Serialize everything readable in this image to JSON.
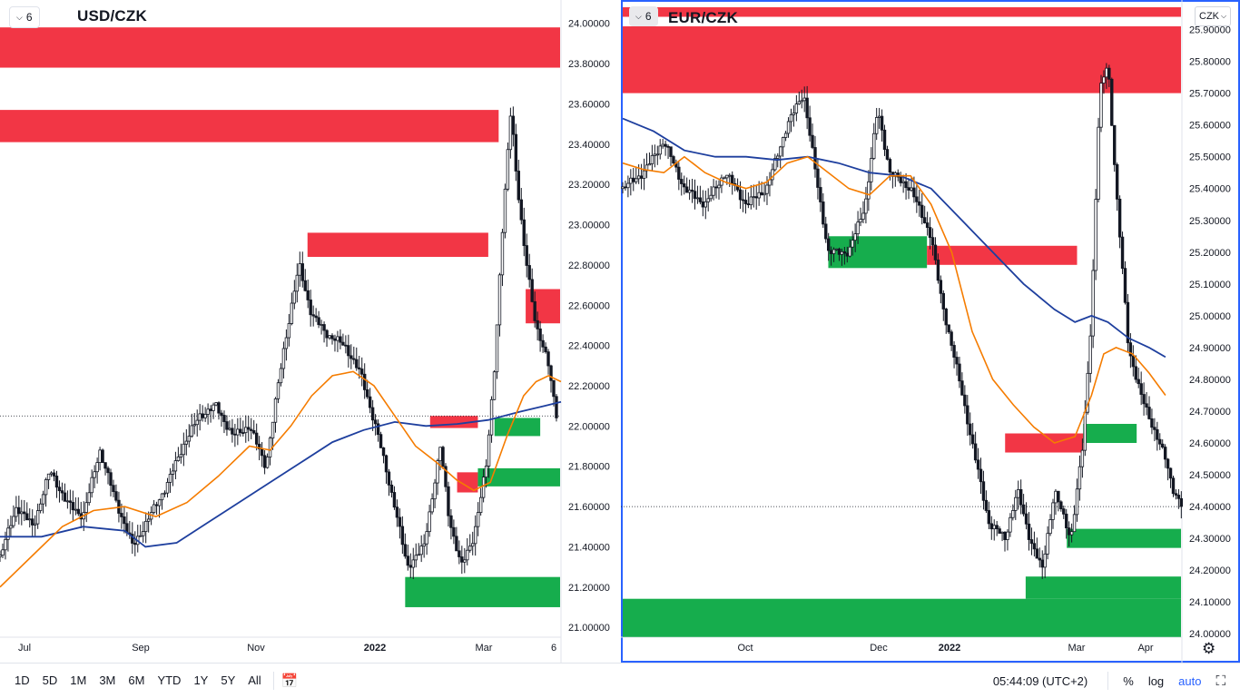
{
  "toolbar": {
    "timeframes": [
      "1D",
      "5D",
      "1M",
      "3M",
      "6M",
      "YTD",
      "1Y",
      "5Y",
      "All"
    ],
    "clock": "05:44:09 (UTC+2)",
    "percent_label": "%",
    "log_label": "log",
    "auto_label": "auto",
    "compare_icon": "calendar-range-icon",
    "fullscreen_icon": "fullscreen-icon"
  },
  "colors": {
    "supply_zone": "#f23645",
    "demand_zone": "#16ad4d",
    "ma_fast": "#f57c00",
    "ma_slow": "#1e3f9e",
    "candle": "#131722",
    "accent": "#2962ff"
  },
  "chart_data": [
    {
      "type": "candlestick",
      "title": "USD/CZK",
      "interval": "6",
      "ylim": [
        20.96,
        24.08
      ],
      "y_ticks": [
        "24.00000",
        "23.80000",
        "23.60000",
        "23.40000",
        "23.20000",
        "23.00000",
        "22.80000",
        "22.60000",
        "22.40000",
        "22.20000",
        "22.00000",
        "21.80000",
        "21.60000",
        "21.40000",
        "21.20000",
        "21.00000"
      ],
      "x_ticks": [
        "Jul",
        "Sep",
        "Nov",
        "2022",
        "Mar",
        "6"
      ],
      "last_price": 22.05,
      "close_series": [
        {
          "t": 0,
          "v": 21.35
        },
        {
          "t": 8,
          "v": 21.6
        },
        {
          "t": 16,
          "v": 21.5
        },
        {
          "t": 24,
          "v": 21.78
        },
        {
          "t": 32,
          "v": 21.62
        },
        {
          "t": 40,
          "v": 21.55
        },
        {
          "t": 48,
          "v": 21.88
        },
        {
          "t": 56,
          "v": 21.62
        },
        {
          "t": 64,
          "v": 21.4
        },
        {
          "t": 72,
          "v": 21.55
        },
        {
          "t": 80,
          "v": 21.7
        },
        {
          "t": 88,
          "v": 21.9
        },
        {
          "t": 96,
          "v": 22.05
        },
        {
          "t": 104,
          "v": 22.1
        },
        {
          "t": 112,
          "v": 21.95
        },
        {
          "t": 120,
          "v": 22.0
        },
        {
          "t": 128,
          "v": 21.8
        },
        {
          "t": 136,
          "v": 22.35
        },
        {
          "t": 144,
          "v": 22.8
        },
        {
          "t": 150,
          "v": 22.55
        },
        {
          "t": 158,
          "v": 22.45
        },
        {
          "t": 166,
          "v": 22.4
        },
        {
          "t": 174,
          "v": 22.25
        },
        {
          "t": 182,
          "v": 21.95
        },
        {
          "t": 190,
          "v": 21.6
        },
        {
          "t": 196,
          "v": 21.3
        },
        {
          "t": 204,
          "v": 21.4
        },
        {
          "t": 212,
          "v": 21.9
        },
        {
          "t": 216,
          "v": 21.55
        },
        {
          "t": 222,
          "v": 21.3
        },
        {
          "t": 228,
          "v": 21.45
        },
        {
          "t": 234,
          "v": 21.8
        },
        {
          "t": 238,
          "v": 22.3
        },
        {
          "t": 242,
          "v": 23.0
        },
        {
          "t": 246,
          "v": 23.6
        },
        {
          "t": 248,
          "v": 23.3
        },
        {
          "t": 252,
          "v": 22.9
        },
        {
          "t": 258,
          "v": 22.5
        },
        {
          "t": 264,
          "v": 22.3
        },
        {
          "t": 268,
          "v": 22.05
        }
      ],
      "ma_fast": [
        {
          "t": 0,
          "v": 21.2
        },
        {
          "t": 15,
          "v": 21.35
        },
        {
          "t": 30,
          "v": 21.5
        },
        {
          "t": 45,
          "v": 21.58
        },
        {
          "t": 60,
          "v": 21.6
        },
        {
          "t": 75,
          "v": 21.55
        },
        {
          "t": 90,
          "v": 21.62
        },
        {
          "t": 105,
          "v": 21.75
        },
        {
          "t": 120,
          "v": 21.9
        },
        {
          "t": 130,
          "v": 21.88
        },
        {
          "t": 140,
          "v": 22.0
        },
        {
          "t": 150,
          "v": 22.15
        },
        {
          "t": 160,
          "v": 22.25
        },
        {
          "t": 170,
          "v": 22.27
        },
        {
          "t": 180,
          "v": 22.2
        },
        {
          "t": 190,
          "v": 22.05
        },
        {
          "t": 200,
          "v": 21.9
        },
        {
          "t": 210,
          "v": 21.82
        },
        {
          "t": 220,
          "v": 21.73
        },
        {
          "t": 228,
          "v": 21.68
        },
        {
          "t": 236,
          "v": 21.72
        },
        {
          "t": 244,
          "v": 21.95
        },
        {
          "t": 252,
          "v": 22.15
        },
        {
          "t": 258,
          "v": 22.22
        },
        {
          "t": 264,
          "v": 22.25
        },
        {
          "t": 270,
          "v": 22.22
        }
      ],
      "ma_slow": [
        {
          "t": 0,
          "v": 21.45
        },
        {
          "t": 20,
          "v": 21.45
        },
        {
          "t": 40,
          "v": 21.5
        },
        {
          "t": 60,
          "v": 21.48
        },
        {
          "t": 70,
          "v": 21.4
        },
        {
          "t": 85,
          "v": 21.42
        },
        {
          "t": 100,
          "v": 21.52
        },
        {
          "t": 115,
          "v": 21.62
        },
        {
          "t": 130,
          "v": 21.72
        },
        {
          "t": 145,
          "v": 21.82
        },
        {
          "t": 160,
          "v": 21.92
        },
        {
          "t": 175,
          "v": 21.98
        },
        {
          "t": 190,
          "v": 22.02
        },
        {
          "t": 205,
          "v": 22.0
        },
        {
          "t": 220,
          "v": 22.01
        },
        {
          "t": 235,
          "v": 22.03
        },
        {
          "t": 250,
          "v": 22.07
        },
        {
          "t": 262,
          "v": 22.1
        },
        {
          "t": 270,
          "v": 22.12
        }
      ],
      "zones": [
        {
          "kind": "supply",
          "t0": 0,
          "t1": 270,
          "y0": 23.78,
          "y1": 23.98
        },
        {
          "kind": "supply",
          "t0": 0,
          "t1": 240,
          "y0": 23.41,
          "y1": 23.57
        },
        {
          "kind": "supply",
          "t0": 148,
          "t1": 235,
          "y0": 22.84,
          "y1": 22.96
        },
        {
          "kind": "supply",
          "t0": 253,
          "t1": 270,
          "y0": 22.51,
          "y1": 22.68
        },
        {
          "kind": "supply",
          "t0": 207,
          "t1": 230,
          "y0": 21.99,
          "y1": 22.05
        },
        {
          "kind": "demand",
          "t0": 238,
          "t1": 260,
          "y0": 21.95,
          "y1": 22.04
        },
        {
          "kind": "supply",
          "t0": 220,
          "t1": 230,
          "y0": 21.67,
          "y1": 21.77
        },
        {
          "kind": "demand",
          "t0": 230,
          "t1": 270,
          "y0": 21.7,
          "y1": 21.79
        },
        {
          "kind": "demand",
          "t0": 195,
          "t1": 270,
          "y0": 21.1,
          "y1": 21.25
        }
      ]
    },
    {
      "type": "candlestick",
      "title": "EUR/CZK",
      "interval": "6",
      "currency": "CZK",
      "ylim": [
        23.995,
        25.97
      ],
      "y_ticks": [
        "25.90000",
        "25.80000",
        "25.70000",
        "25.60000",
        "25.50000",
        "25.40000",
        "25.30000",
        "25.20000",
        "25.10000",
        "25.00000",
        "24.90000",
        "24.80000",
        "24.70000",
        "24.60000",
        "24.50000",
        "24.40000",
        "24.30000",
        "24.20000",
        "24.10000",
        "24.00000"
      ],
      "x_ticks": [
        "Oct",
        "Dec",
        "2022",
        "Mar",
        "Apr"
      ],
      "last_price": 24.4,
      "close_series": [
        {
          "t": 0,
          "v": 25.4
        },
        {
          "t": 10,
          "v": 25.45
        },
        {
          "t": 20,
          "v": 25.55
        },
        {
          "t": 30,
          "v": 25.4
        },
        {
          "t": 40,
          "v": 25.35
        },
        {
          "t": 50,
          "v": 25.45
        },
        {
          "t": 60,
          "v": 25.35
        },
        {
          "t": 70,
          "v": 25.4
        },
        {
          "t": 80,
          "v": 25.6
        },
        {
          "t": 88,
          "v": 25.7
        },
        {
          "t": 95,
          "v": 25.4
        },
        {
          "t": 100,
          "v": 25.2
        },
        {
          "t": 110,
          "v": 25.2
        },
        {
          "t": 118,
          "v": 25.35
        },
        {
          "t": 124,
          "v": 25.65
        },
        {
          "t": 130,
          "v": 25.45
        },
        {
          "t": 140,
          "v": 25.4
        },
        {
          "t": 150,
          "v": 25.25
        },
        {
          "t": 155,
          "v": 25.05
        },
        {
          "t": 162,
          "v": 24.85
        },
        {
          "t": 170,
          "v": 24.6
        },
        {
          "t": 178,
          "v": 24.35
        },
        {
          "t": 186,
          "v": 24.3
        },
        {
          "t": 192,
          "v": 24.45
        },
        {
          "t": 198,
          "v": 24.3
        },
        {
          "t": 204,
          "v": 24.2
        },
        {
          "t": 210,
          "v": 24.45
        },
        {
          "t": 218,
          "v": 24.3
        },
        {
          "t": 224,
          "v": 24.6
        },
        {
          "t": 228,
          "v": 25.0
        },
        {
          "t": 232,
          "v": 25.7
        },
        {
          "t": 236,
          "v": 25.8
        },
        {
          "t": 240,
          "v": 25.4
        },
        {
          "t": 246,
          "v": 24.9
        },
        {
          "t": 252,
          "v": 24.75
        },
        {
          "t": 258,
          "v": 24.65
        },
        {
          "t": 264,
          "v": 24.55
        },
        {
          "t": 268,
          "v": 24.45
        },
        {
          "t": 272,
          "v": 24.4
        }
      ],
      "ma_fast": [
        {
          "t": 0,
          "v": 25.48
        },
        {
          "t": 10,
          "v": 25.46
        },
        {
          "t": 20,
          "v": 25.45
        },
        {
          "t": 30,
          "v": 25.5
        },
        {
          "t": 40,
          "v": 25.45
        },
        {
          "t": 50,
          "v": 25.42
        },
        {
          "t": 60,
          "v": 25.4
        },
        {
          "t": 70,
          "v": 25.42
        },
        {
          "t": 80,
          "v": 25.48
        },
        {
          "t": 90,
          "v": 25.5
        },
        {
          "t": 100,
          "v": 25.45
        },
        {
          "t": 110,
          "v": 25.4
        },
        {
          "t": 120,
          "v": 25.38
        },
        {
          "t": 130,
          "v": 25.44
        },
        {
          "t": 140,
          "v": 25.44
        },
        {
          "t": 150,
          "v": 25.35
        },
        {
          "t": 160,
          "v": 25.2
        },
        {
          "t": 170,
          "v": 24.95
        },
        {
          "t": 180,
          "v": 24.8
        },
        {
          "t": 190,
          "v": 24.72
        },
        {
          "t": 200,
          "v": 24.65
        },
        {
          "t": 210,
          "v": 24.6
        },
        {
          "t": 220,
          "v": 24.62
        },
        {
          "t": 228,
          "v": 24.75
        },
        {
          "t": 234,
          "v": 24.88
        },
        {
          "t": 240,
          "v": 24.9
        },
        {
          "t": 248,
          "v": 24.88
        },
        {
          "t": 256,
          "v": 24.82
        },
        {
          "t": 264,
          "v": 24.75
        }
      ],
      "ma_slow": [
        {
          "t": 0,
          "v": 25.62
        },
        {
          "t": 15,
          "v": 25.58
        },
        {
          "t": 30,
          "v": 25.52
        },
        {
          "t": 45,
          "v": 25.5
        },
        {
          "t": 60,
          "v": 25.5
        },
        {
          "t": 75,
          "v": 25.49
        },
        {
          "t": 90,
          "v": 25.5
        },
        {
          "t": 105,
          "v": 25.48
        },
        {
          "t": 120,
          "v": 25.45
        },
        {
          "t": 135,
          "v": 25.44
        },
        {
          "t": 150,
          "v": 25.4
        },
        {
          "t": 165,
          "v": 25.3
        },
        {
          "t": 180,
          "v": 25.2
        },
        {
          "t": 195,
          "v": 25.1
        },
        {
          "t": 210,
          "v": 25.02
        },
        {
          "t": 220,
          "v": 24.98
        },
        {
          "t": 228,
          "v": 25.0
        },
        {
          "t": 236,
          "v": 24.98
        },
        {
          "t": 246,
          "v": 24.93
        },
        {
          "t": 256,
          "v": 24.9
        },
        {
          "t": 264,
          "v": 24.87
        }
      ],
      "zones": [
        {
          "kind": "supply",
          "t0": 0,
          "t1": 272,
          "y0": 25.94,
          "y1": 25.97
        },
        {
          "kind": "supply",
          "t0": 0,
          "t1": 272,
          "y0": 25.7,
          "y1": 25.91
        },
        {
          "kind": "demand",
          "t0": 100,
          "t1": 148,
          "y0": 25.15,
          "y1": 25.25
        },
        {
          "kind": "supply",
          "t0": 148,
          "t1": 221,
          "y0": 25.16,
          "y1": 25.22
        },
        {
          "kind": "supply",
          "t0": 186,
          "t1": 224,
          "y0": 24.57,
          "y1": 24.63
        },
        {
          "kind": "demand",
          "t0": 224,
          "t1": 250,
          "y0": 24.6,
          "y1": 24.66
        },
        {
          "kind": "demand",
          "t0": 216,
          "t1": 272,
          "y0": 24.27,
          "y1": 24.33
        },
        {
          "kind": "demand",
          "t0": 196,
          "t1": 272,
          "y0": 24.11,
          "y1": 24.18
        },
        {
          "kind": "demand",
          "t0": 0,
          "t1": 272,
          "y0": 23.99,
          "y1": 24.11
        }
      ]
    }
  ]
}
